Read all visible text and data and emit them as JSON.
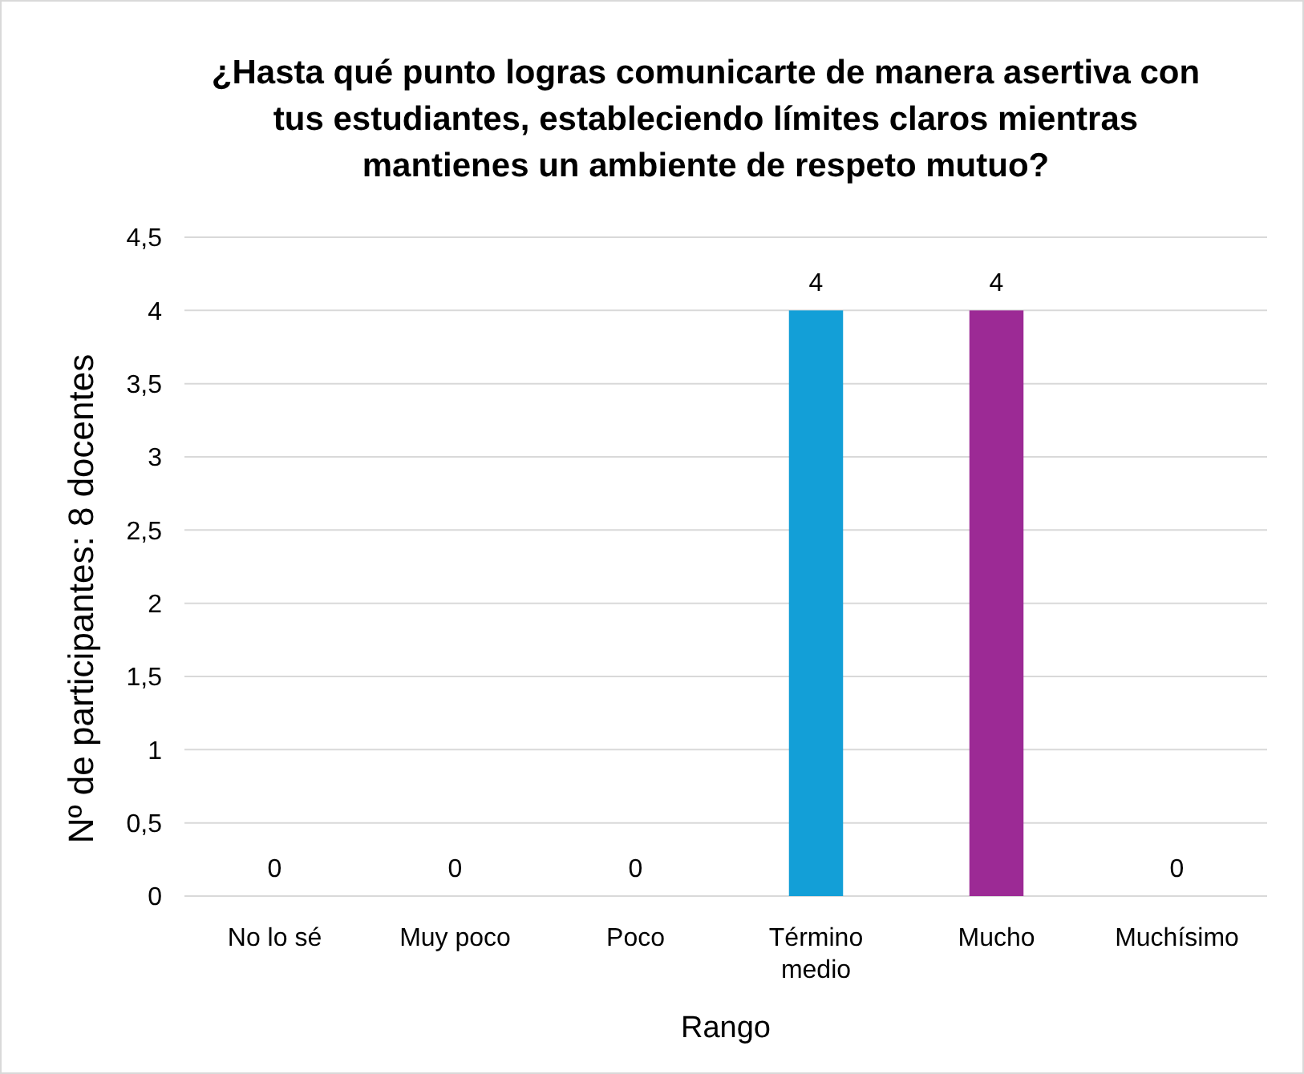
{
  "chart_data": {
    "type": "bar",
    "title": "¿Hasta qué punto logras comunicarte de manera asertiva con tus estudiantes, estableciendo límites claros mientras mantienes un ambiente de respeto mutuo?",
    "xlabel": "Rango",
    "ylabel": "Nº de participantes: 8 docentes",
    "categories": [
      "No lo sé",
      "Muy poco",
      "Poco",
      "Término medio",
      "Mucho",
      "Muchísimo"
    ],
    "values": [
      0,
      0,
      0,
      4,
      4,
      0
    ],
    "colors": [
      "#4472c4",
      "#ed7d31",
      "#a5a5a5",
      "#139fd7",
      "#9c2a95",
      "#5b9bd5"
    ],
    "ylim": [
      0,
      4.5
    ],
    "yticks": [
      {
        "value": 0,
        "label": "0"
      },
      {
        "value": 0.5,
        "label": "0,5"
      },
      {
        "value": 1,
        "label": "1"
      },
      {
        "value": 1.5,
        "label": "1,5"
      },
      {
        "value": 2,
        "label": "2"
      },
      {
        "value": 2.5,
        "label": "2,5"
      },
      {
        "value": 3,
        "label": "3"
      },
      {
        "value": 3.5,
        "label": "3,5"
      },
      {
        "value": 4,
        "label": "4"
      },
      {
        "value": 4.5,
        "label": "4,5"
      }
    ],
    "grid": "y",
    "data_labels": true
  }
}
